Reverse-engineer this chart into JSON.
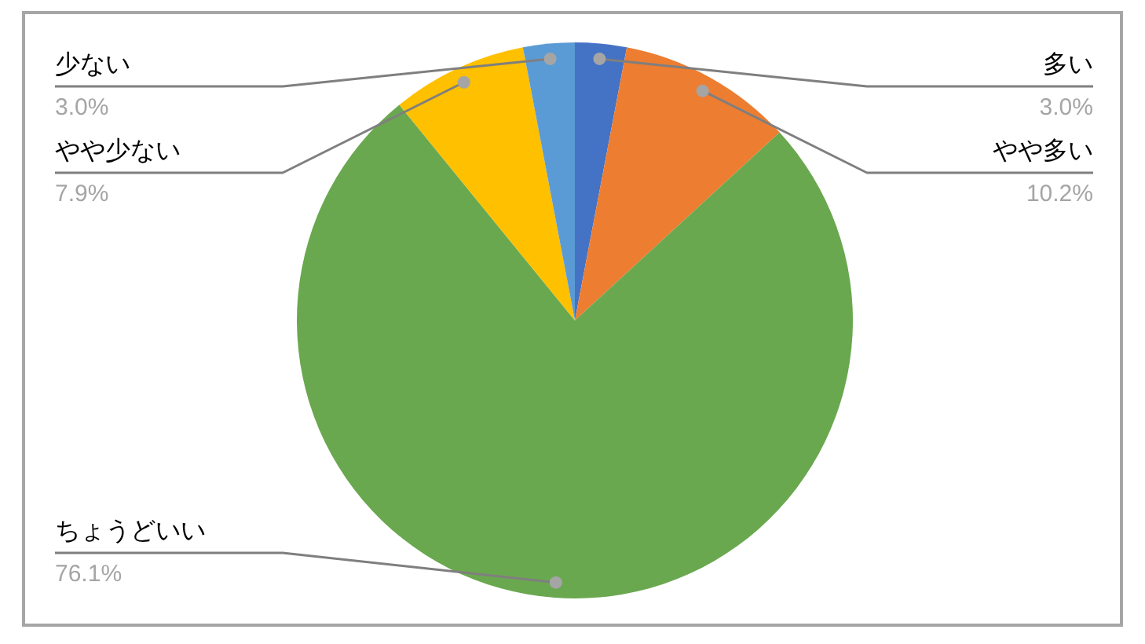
{
  "chart_data": {
    "type": "pie",
    "categories": [
      "多い",
      "やや多い",
      "ちょうどいい",
      "やや少ない",
      "少ない"
    ],
    "values": [
      3.0,
      10.2,
      76.1,
      7.9,
      3.0
    ],
    "colors": [
      "#4472c4",
      "#ed7d31",
      "#6aa84f",
      "#ffc000",
      "#5b9bd5"
    ],
    "value_labels": [
      "3.0%",
      "10.2%",
      "76.1%",
      "7.9%",
      "3.0%"
    ]
  }
}
